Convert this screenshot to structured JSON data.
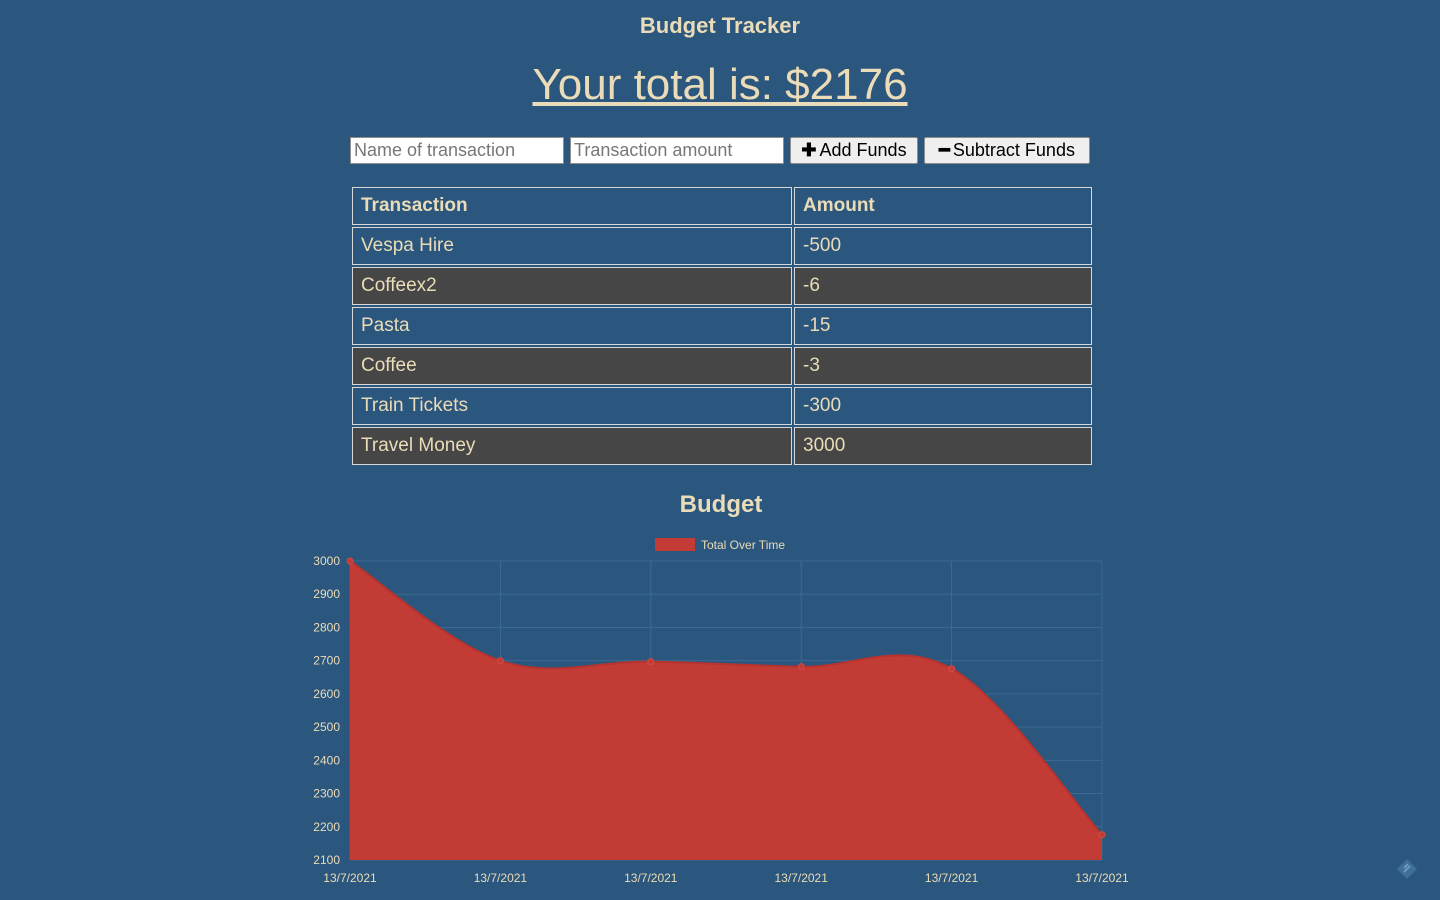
{
  "app": {
    "title": "Budget Tracker",
    "total_text": "Your total is: $2176"
  },
  "form": {
    "name_placeholder": "Name of transaction",
    "amount_placeholder": "Transaction amount",
    "add_icon": "plus-icon",
    "add_label": "Add Funds",
    "subtract_icon": "minus-icon",
    "subtract_label": "Subtract Funds"
  },
  "table": {
    "headers": [
      "Transaction",
      "Amount"
    ],
    "rows": [
      {
        "name": "Vespa Hire",
        "amount": "-500"
      },
      {
        "name": "Coffeex2",
        "amount": "-6"
      },
      {
        "name": "Pasta",
        "amount": "-15"
      },
      {
        "name": "Coffee",
        "amount": "-3"
      },
      {
        "name": "Train Tickets",
        "amount": "-300"
      },
      {
        "name": "Travel Money",
        "amount": "3000"
      }
    ]
  },
  "colors": {
    "background": "#2b567d",
    "text": "#eadcb8",
    "row_alt": "#464646",
    "series_fill": "#c23b35",
    "grid": "#3b6a92"
  },
  "chart_data": {
    "type": "area",
    "title": "Budget",
    "categories": [
      "13/7/2021",
      "13/7/2021",
      "13/7/2021",
      "13/7/2021",
      "13/7/2021",
      "13/7/2021"
    ],
    "series": [
      {
        "name": "Total Over Time",
        "values": [
          3000,
          2700,
          2697,
          2682,
          2676,
          2176
        ]
      }
    ],
    "yticks": [
      3000,
      2900,
      2800,
      2700,
      2600,
      2500,
      2400,
      2300,
      2200,
      2100
    ],
    "ylim": [
      2100,
      3000
    ],
    "legend": "top-center",
    "grid": true
  }
}
